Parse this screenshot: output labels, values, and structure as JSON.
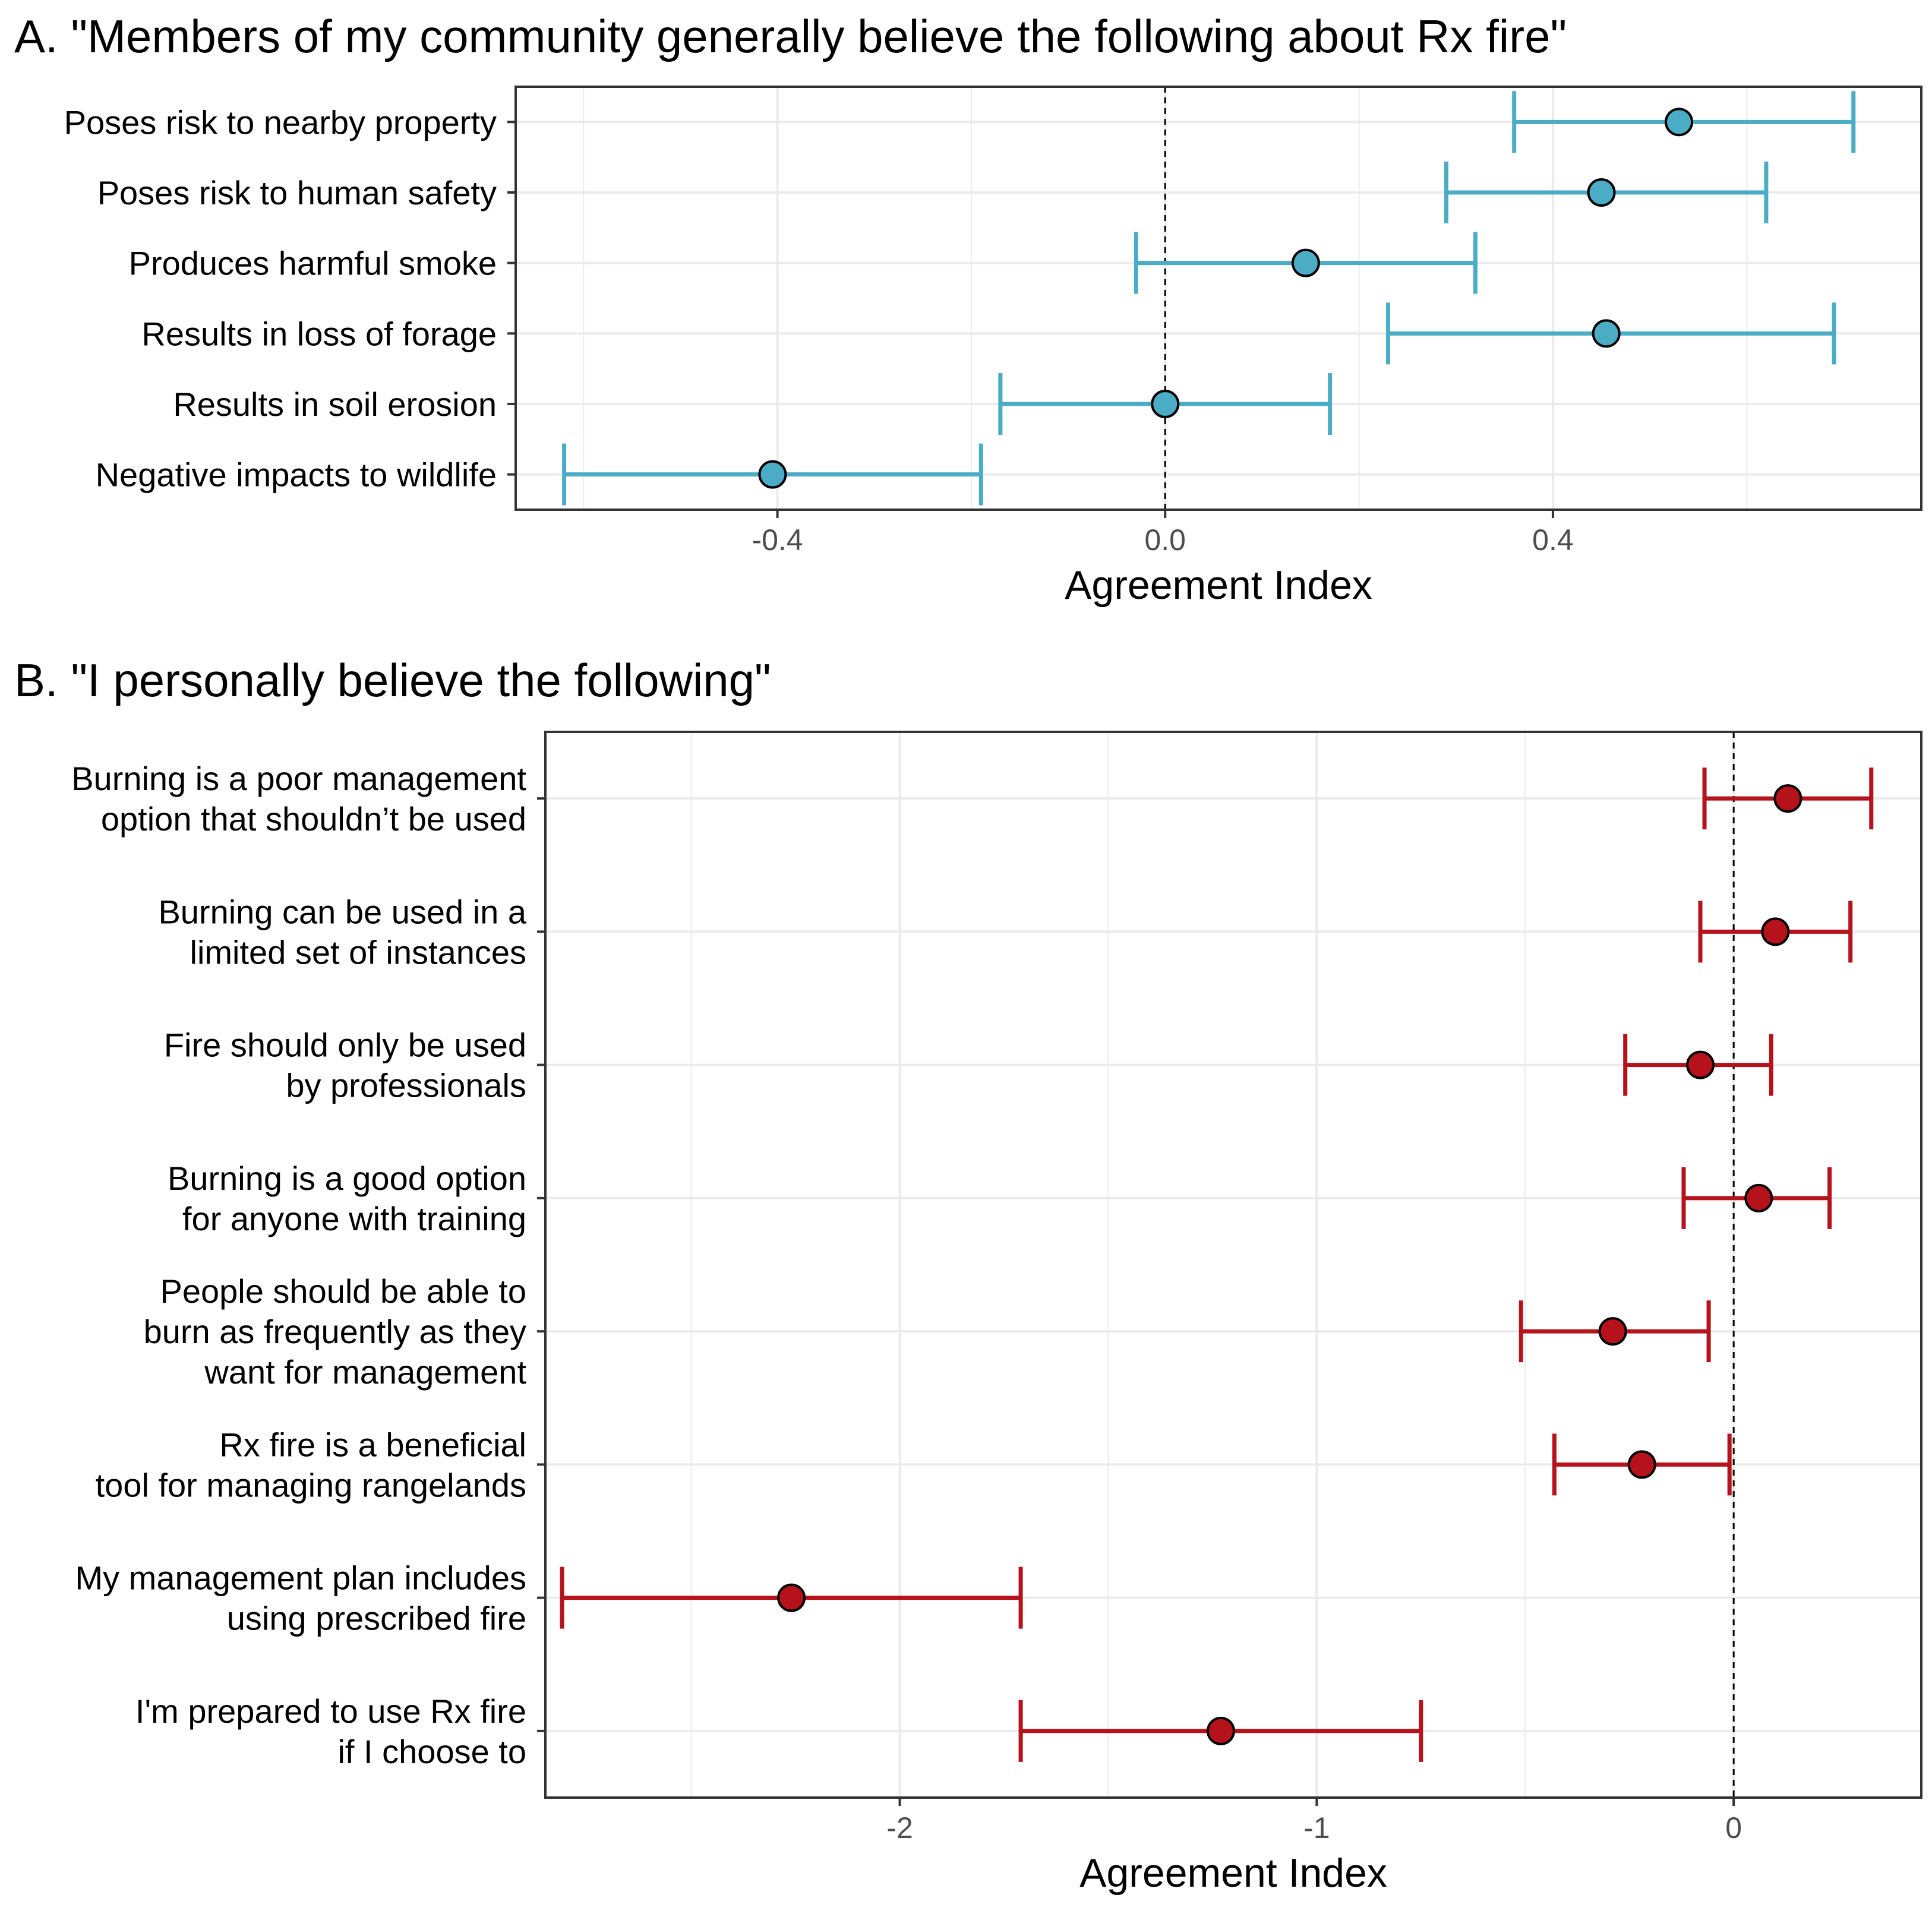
{
  "chart_data": [
    {
      "type": "scatter",
      "subtype": "point-range",
      "title": "A. \"Members of my community generally believe the following about Rx fire\"",
      "xlabel": "Agreement Index",
      "ylabel": "",
      "xlim": [
        -0.67,
        0.78
      ],
      "x_ticks": [
        -0.4,
        0.0,
        0.4
      ],
      "x_tick_labels": [
        "-0.4",
        "0.0",
        "0.4"
      ],
      "reference_line_x": 0,
      "grid": true,
      "color": "#4bacc6",
      "categories": [
        [
          "Poses risk to nearby property"
        ],
        [
          "Poses risk to human safety"
        ],
        [
          "Produces harmful smoke"
        ],
        [
          "Results in loss of forage"
        ],
        [
          "Results in soil erosion"
        ],
        [
          "Negative impacts to wildlife"
        ]
      ],
      "series": [
        {
          "name": "Agreement Index",
          "values": [
            0.53,
            0.45,
            0.145,
            0.455,
            0.0,
            -0.405
          ],
          "lower": [
            0.36,
            0.29,
            -0.03,
            0.23,
            -0.17,
            -0.62
          ],
          "upper": [
            0.71,
            0.62,
            0.32,
            0.69,
            0.17,
            -0.19
          ]
        }
      ]
    },
    {
      "type": "scatter",
      "subtype": "point-range",
      "title": "B. \"I personally believe the following\"",
      "xlabel": "Agreement Index",
      "ylabel": "",
      "xlim": [
        -2.85,
        0.45
      ],
      "x_ticks": [
        -2,
        -1,
        0
      ],
      "x_tick_labels": [
        "-2",
        "-1",
        "0"
      ],
      "reference_line_x": 0,
      "grid": true,
      "color": "#b5121b",
      "categories": [
        [
          "Burning is a poor management",
          "option that shouldn’t be used"
        ],
        [
          "Burning can be used in a",
          "limited set of instances"
        ],
        [
          "Fire should only be used",
          "by professionals"
        ],
        [
          "Burning is a good option",
          "for anyone with training"
        ],
        [
          "People should be able to",
          "burn as frequently as they",
          "want for management"
        ],
        [
          "Rx fire is a beneficial",
          "tool for managing rangelands"
        ],
        [
          "My management plan includes",
          "using prescribed fire"
        ],
        [
          "I'm prepared to use Rx fire",
          "if I choose to"
        ]
      ],
      "series": [
        {
          "name": "Agreement Index",
          "values": [
            0.13,
            0.1,
            -0.08,
            0.06,
            -0.29,
            -0.22,
            -2.26,
            -1.23
          ],
          "lower": [
            -0.07,
            -0.08,
            -0.26,
            -0.12,
            -0.51,
            -0.43,
            -2.81,
            -1.71
          ],
          "upper": [
            0.33,
            0.28,
            0.09,
            0.23,
            -0.06,
            -0.01,
            -1.71,
            -0.75
          ]
        }
      ]
    }
  ]
}
